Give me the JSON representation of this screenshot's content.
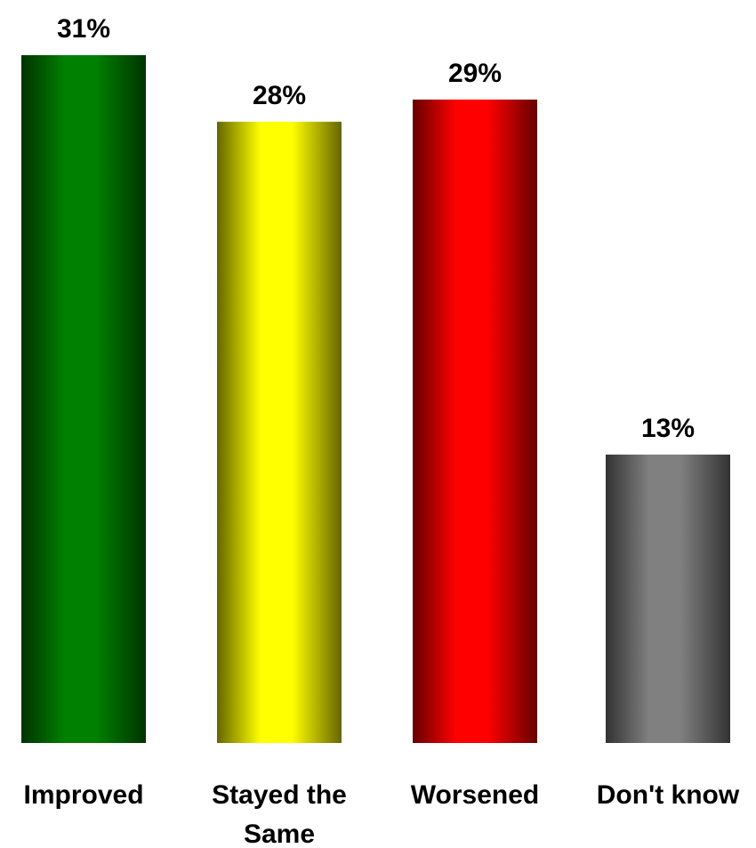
{
  "chart_data": {
    "type": "bar",
    "categories": [
      "Improved",
      "Stayed the Same",
      "Worsened",
      "Don't know"
    ],
    "category_lines": [
      [
        "Improved"
      ],
      [
        "Stayed the",
        "Same"
      ],
      [
        "Worsened"
      ],
      [
        "Don't know"
      ]
    ],
    "values": [
      31,
      28,
      29,
      13
    ],
    "value_labels": [
      "31%",
      "28%",
      "29%",
      "13%"
    ],
    "unit": "%",
    "colors": [
      "#008000",
      "#ffff00",
      "#ff0000",
      "#808080"
    ],
    "shades": [
      "#003300",
      "#666600",
      "#660000",
      "#333333"
    ],
    "title": "",
    "xlabel": "",
    "ylabel": "",
    "ylim": [
      0,
      31
    ],
    "grid": false,
    "legend": "none"
  }
}
